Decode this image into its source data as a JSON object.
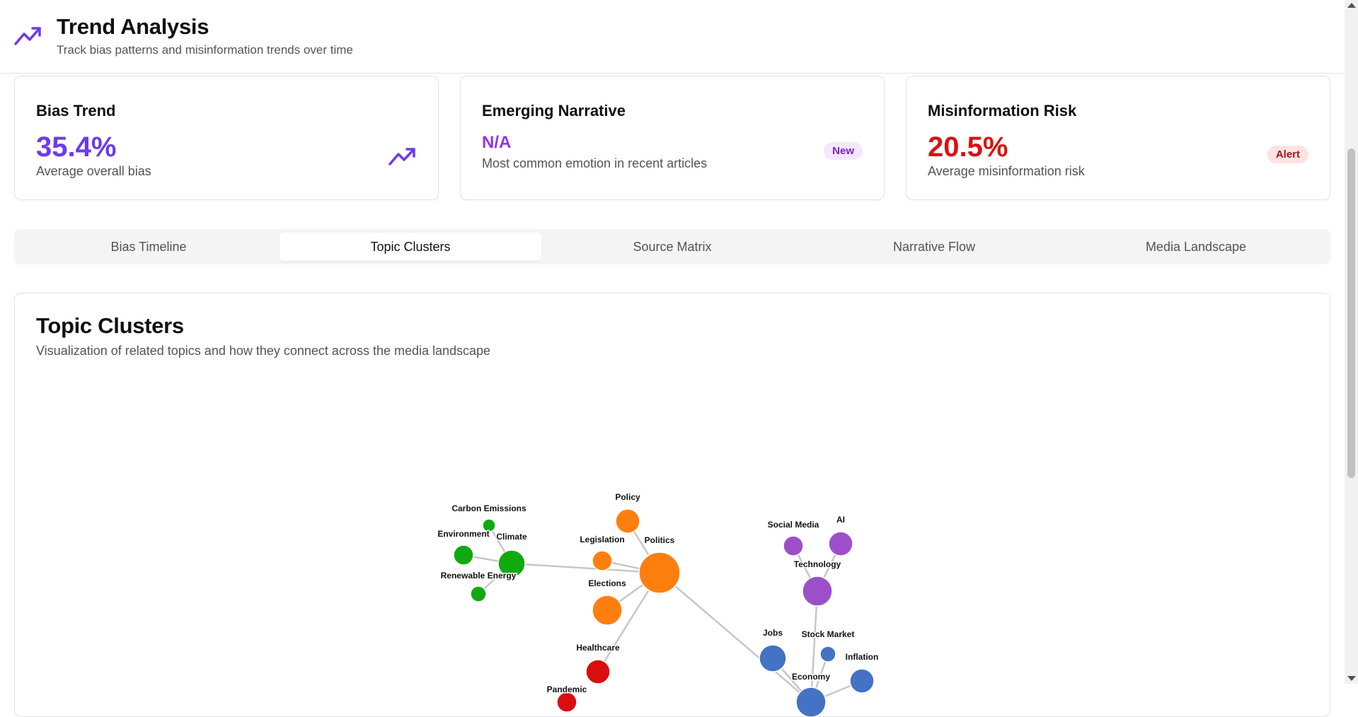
{
  "header": {
    "icon": "trending-up-icon",
    "title": "Trend Analysis",
    "subtitle": "Track bias patterns and misinformation trends over time"
  },
  "cards": {
    "bias": {
      "title": "Bias Trend",
      "value": "35.4%",
      "description": "Average overall bias",
      "icon": "trending-up-icon",
      "color": "#6d3aed"
    },
    "narrative": {
      "title": "Emerging Narrative",
      "value": "N/A",
      "description": "Most common emotion in recent articles",
      "badge": "New",
      "color": "#9333ea"
    },
    "risk": {
      "title": "Misinformation Risk",
      "value": "20.5%",
      "description": "Average misinformation risk",
      "badge": "Alert",
      "color": "#dc1010"
    }
  },
  "tabs": [
    {
      "label": "Bias Timeline",
      "active": false
    },
    {
      "label": "Topic Clusters",
      "active": true
    },
    {
      "label": "Source Matrix",
      "active": false
    },
    {
      "label": "Narrative Flow",
      "active": false
    },
    {
      "label": "Media Landscape",
      "active": false
    }
  ],
  "panel": {
    "title": "Topic Clusters",
    "subtitle": "Visualization of related topics and how they connect across the media landscape"
  },
  "colors": {
    "environment": "#10aa10",
    "politics": "#ff7f0e",
    "technology": "#9c4fc9",
    "economy": "#4472c4",
    "health": "#d90e0e",
    "edge": "#c7c7c7"
  },
  "topic_graph": {
    "nodes": [
      {
        "id": "Carbon Emissions",
        "group": "environment"
      },
      {
        "id": "Environment",
        "group": "environment"
      },
      {
        "id": "Climate",
        "group": "environment"
      },
      {
        "id": "Renewable Energy",
        "group": "environment"
      },
      {
        "id": "Policy",
        "group": "politics"
      },
      {
        "id": "Legislation",
        "group": "politics"
      },
      {
        "id": "Politics",
        "group": "politics"
      },
      {
        "id": "Elections",
        "group": "politics"
      },
      {
        "id": "Social Media",
        "group": "technology"
      },
      {
        "id": "AI",
        "group": "technology"
      },
      {
        "id": "Technology",
        "group": "technology"
      },
      {
        "id": "Jobs",
        "group": "economy"
      },
      {
        "id": "Stock Market",
        "group": "economy"
      },
      {
        "id": "Inflation",
        "group": "economy"
      },
      {
        "id": "Economy",
        "group": "economy"
      },
      {
        "id": "Healthcare",
        "group": "health"
      },
      {
        "id": "Pandemic",
        "group": "health"
      }
    ],
    "edges": [
      [
        "Carbon Emissions",
        "Climate"
      ],
      [
        "Environment",
        "Climate"
      ],
      [
        "Renewable Energy",
        "Climate"
      ],
      [
        "Climate",
        "Politics"
      ],
      [
        "Policy",
        "Politics"
      ],
      [
        "Legislation",
        "Politics"
      ],
      [
        "Elections",
        "Politics"
      ],
      [
        "Politics",
        "Healthcare"
      ],
      [
        "Politics",
        "Economy"
      ],
      [
        "Social Media",
        "Technology"
      ],
      [
        "AI",
        "Technology"
      ],
      [
        "Technology",
        "Economy"
      ],
      [
        "Jobs",
        "Economy"
      ],
      [
        "Stock Market",
        "Economy"
      ],
      [
        "Inflation",
        "Economy"
      ]
    ]
  }
}
